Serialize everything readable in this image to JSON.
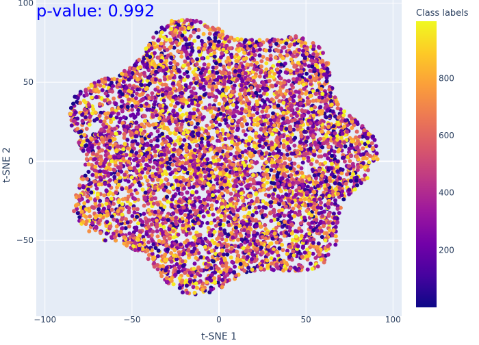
{
  "chart_data": {
    "type": "scatter",
    "annotation": "p-value: 0.992",
    "xlabel": "t-SNE 1",
    "ylabel": "t-SNE 2",
    "xlim": [
      -105,
      105
    ],
    "ylim": [
      -98,
      102
    ],
    "x_ticks": [
      -100,
      -50,
      0,
      50,
      100
    ],
    "x_tick_labels": [
      "−100",
      "−50",
      "0",
      "50",
      "100"
    ],
    "y_ticks": [
      -50,
      0,
      50,
      100
    ],
    "y_tick_labels": [
      "−50",
      "0",
      "50",
      "100"
    ],
    "grid": true,
    "colorbar": {
      "title": "Class labels",
      "range": [
        0,
        999
      ],
      "ticks": [
        200,
        400,
        600,
        800
      ],
      "tick_labels": [
        "200",
        "400",
        "600",
        "800"
      ],
      "colorscale": [
        "#0d0887",
        "#46039f",
        "#7201a8",
        "#9c179e",
        "#bd3786",
        "#d8576b",
        "#ed7953",
        "#fb9f3a",
        "#fdca26",
        "#f0f921"
      ]
    },
    "cluster": {
      "description": "single roughly circular cloud of points with uniformly mixed class labels",
      "center": [
        0,
        2
      ],
      "x_extent": [
        -92,
        92
      ],
      "y_extent": [
        -86,
        93
      ],
      "approx_point_count": 6000
    },
    "colors": {
      "plot_bg": "#e5ecf6",
      "grid": "#ffffff",
      "text": "#2a3f5f",
      "annotation": "#0000ff"
    }
  }
}
